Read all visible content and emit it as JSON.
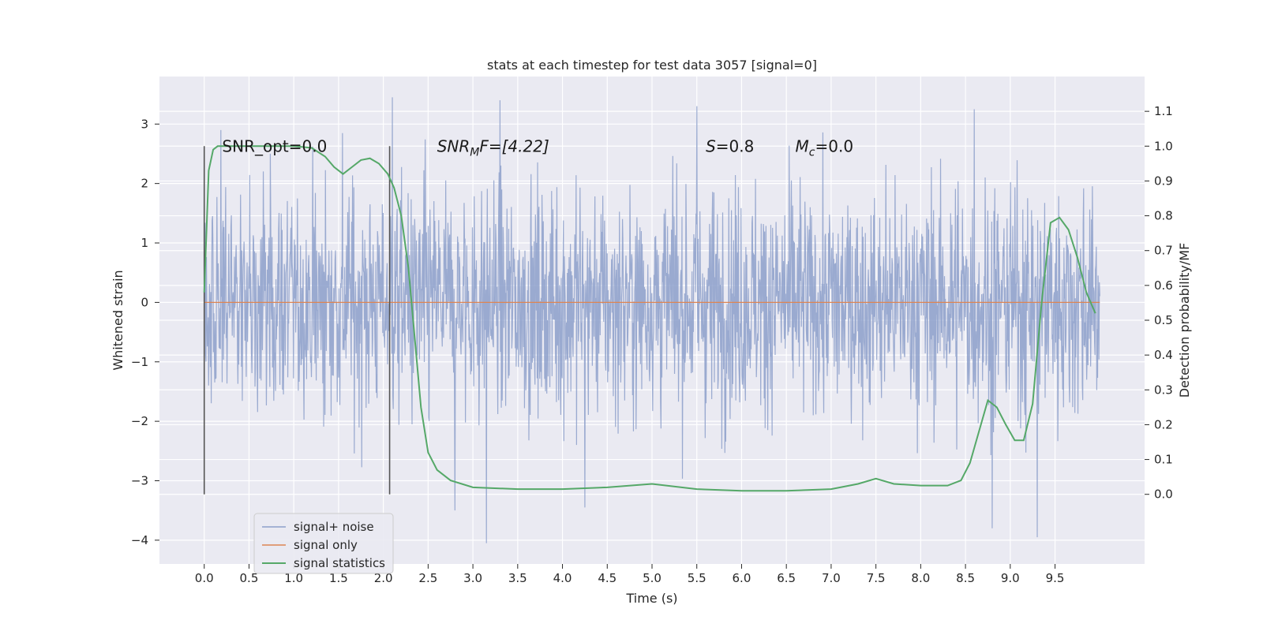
{
  "chart_data": {
    "type": "line",
    "title": "stats at each timestep for test data 3057 [signal=0]",
    "xlabel": "Time (s)",
    "ylabel": "Whitened strain",
    "y2label": "Detection probability/MF",
    "xlim": [
      -0.5,
      10.5
    ],
    "ylim": [
      -4.4,
      3.8
    ],
    "y2lim": [
      -0.2,
      1.2
    ],
    "x_ticks": [
      "0.0",
      "0.5",
      "1.0",
      "1.5",
      "2.0",
      "2.5",
      "3.0",
      "3.5",
      "4.0",
      "4.5",
      "5.0",
      "5.5",
      "6.0",
      "6.5",
      "7.0",
      "7.5",
      "8.0",
      "8.5",
      "9.0",
      "9.5"
    ],
    "x_tick_values": [
      0,
      0.5,
      1,
      1.5,
      2,
      2.5,
      3,
      3.5,
      4,
      4.5,
      5,
      5.5,
      6,
      6.5,
      7,
      7.5,
      8,
      8.5,
      9,
      9.5
    ],
    "y_ticks": [
      "3",
      "2",
      "1",
      "0",
      "−1",
      "−2",
      "−3",
      "−4"
    ],
    "y_tick_values": [
      3,
      2,
      1,
      0,
      -1,
      -2,
      -3,
      -4
    ],
    "y2_ticks": [
      "1.1",
      "1.0",
      "0.9",
      "0.8",
      "0.7",
      "0.6",
      "0.5",
      "0.4",
      "0.3",
      "0.2",
      "0.1",
      "0.0"
    ],
    "y2_tick_values": [
      1.1,
      1.0,
      0.9,
      0.8,
      0.7,
      0.6,
      0.5,
      0.4,
      0.3,
      0.2,
      0.1,
      0.0
    ],
    "grid": true,
    "legend_position": "lower-left",
    "annotations": [
      {
        "text": "SNR_opt=0.0",
        "x": 0.2,
        "y2": 1.0
      },
      {
        "text": "SNR",
        "sub": "M",
        "tail": "F=[4.22]",
        "x": 2.6,
        "y2": 1.0
      },
      {
        "text": "S",
        "tail": "=0.8",
        "x": 5.6,
        "y2": 1.0
      },
      {
        "text": "M",
        "sub": "c",
        "tail": "=0.0",
        "x": 6.6,
        "y2": 1.0
      }
    ],
    "vlines": [
      {
        "x": 0.0,
        "y2_from": 0.0,
        "y2_to": 1.0
      },
      {
        "x": 2.07,
        "y2_from": 0.0,
        "y2_to": 1.0
      }
    ],
    "series": [
      {
        "name": "signal+ noise",
        "color": "#8c9fca",
        "t_start": 0.0,
        "t_end": 10.0,
        "envelope_typical": 1.5,
        "notable_spikes": [
          {
            "x": 2.1,
            "y": 3.45
          },
          {
            "x": 3.3,
            "y": 3.4
          },
          {
            "x": 5.5,
            "y": 3.3
          },
          {
            "x": 8.6,
            "y": 3.25
          },
          {
            "x": 3.15,
            "y": -4.05
          },
          {
            "x": 8.8,
            "y": -3.8
          },
          {
            "x": 9.3,
            "y": -3.95
          },
          {
            "x": 2.8,
            "y": -3.5
          },
          {
            "x": 4.25,
            "y": -3.45
          }
        ]
      },
      {
        "name": "signal only",
        "color": "#dd8452",
        "x": [
          0.0,
          10.0
        ],
        "y": [
          0.0,
          0.0
        ]
      },
      {
        "name": "signal statistics",
        "color": "#55a868",
        "axis": "right",
        "x": [
          0.0,
          0.05,
          0.1,
          0.15,
          0.25,
          0.4,
          0.6,
          0.8,
          1.0,
          1.2,
          1.35,
          1.45,
          1.55,
          1.65,
          1.75,
          1.85,
          1.95,
          2.05,
          2.12,
          2.2,
          2.28,
          2.35,
          2.42,
          2.5,
          2.6,
          2.75,
          3.0,
          3.5,
          4.0,
          4.5,
          5.0,
          5.5,
          6.0,
          6.5,
          7.0,
          7.3,
          7.5,
          7.7,
          8.0,
          8.3,
          8.45,
          8.55,
          8.65,
          8.75,
          8.85,
          8.95,
          9.05,
          9.15,
          9.25,
          9.35,
          9.45,
          9.55,
          9.65,
          9.75,
          9.85,
          9.95
        ],
        "y": [
          0.58,
          0.93,
          0.99,
          1.0,
          1.0,
          1.0,
          1.0,
          1.0,
          1.0,
          0.995,
          0.97,
          0.94,
          0.92,
          0.94,
          0.96,
          0.965,
          0.95,
          0.92,
          0.88,
          0.8,
          0.65,
          0.45,
          0.25,
          0.12,
          0.07,
          0.04,
          0.02,
          0.015,
          0.015,
          0.02,
          0.03,
          0.015,
          0.01,
          0.01,
          0.015,
          0.03,
          0.045,
          0.03,
          0.025,
          0.025,
          0.04,
          0.09,
          0.18,
          0.27,
          0.25,
          0.2,
          0.155,
          0.155,
          0.26,
          0.55,
          0.78,
          0.795,
          0.76,
          0.68,
          0.58,
          0.52
        ]
      }
    ]
  }
}
